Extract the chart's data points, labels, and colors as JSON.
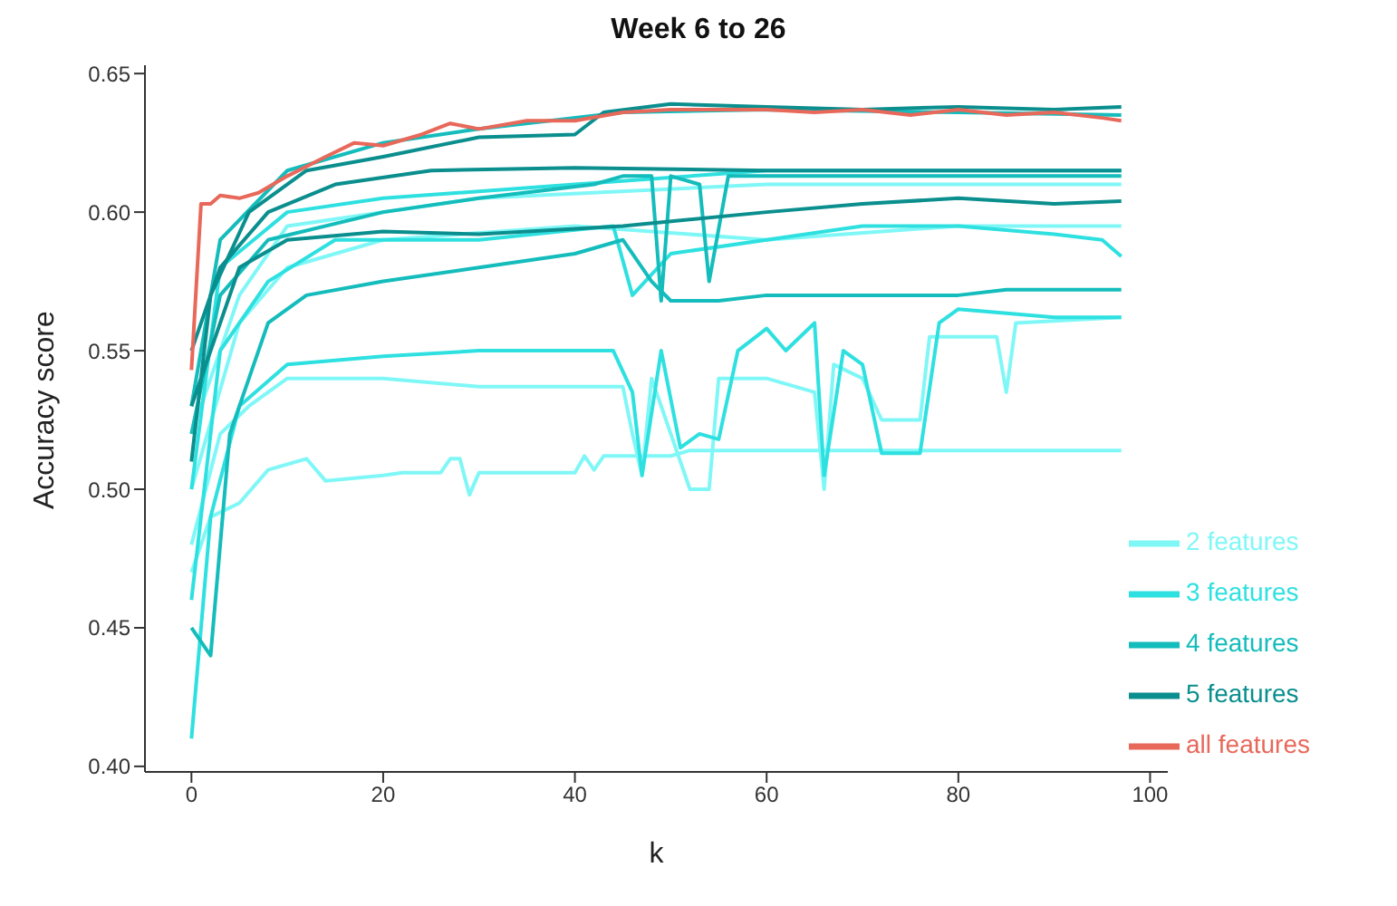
{
  "chart_data": {
    "type": "line",
    "title": "Week 6 to 26",
    "xlabel": "k",
    "ylabel": "Accuracy score",
    "xlim": [
      -4.85,
      101.85
    ],
    "ylim": [
      0.398,
      0.653
    ],
    "xticks": [
      0,
      20,
      40,
      60,
      80,
      100
    ],
    "yticks": [
      {
        "value": 0.4,
        "label": "0.40"
      },
      0.45,
      {
        "value": 0.5,
        "label": "0.50"
      },
      0.55,
      {
        "value": 0.6,
        "label": "0.60"
      },
      0.65
    ],
    "grid": false,
    "legend": "bottom right",
    "marker": "none",
    "line_style": "solid",
    "series": [
      {
        "name": "2 features",
        "color": "#80f7f7",
        "x": [
          0,
          2,
          5,
          8,
          12,
          14,
          20,
          22,
          26,
          27,
          28,
          29,
          30,
          40,
          41,
          42,
          43,
          50,
          52,
          97
        ],
        "values": [
          0.47,
          0.49,
          0.495,
          0.507,
          0.511,
          0.503,
          0.505,
          0.506,
          0.506,
          0.511,
          0.511,
          0.498,
          0.506,
          0.506,
          0.512,
          0.507,
          0.512,
          0.512,
          0.514,
          0.514
        ]
      },
      {
        "color": "#80f7f7",
        "x": [
          0,
          3,
          6,
          10,
          20,
          30,
          40,
          45,
          46,
          47,
          48,
          50,
          52,
          54,
          55,
          60,
          65,
          66,
          67,
          70,
          72,
          76,
          77,
          84,
          85,
          86,
          97
        ],
        "values": [
          0.48,
          0.52,
          0.53,
          0.54,
          0.54,
          0.537,
          0.537,
          0.537,
          0.52,
          0.505,
          0.54,
          0.52,
          0.5,
          0.5,
          0.54,
          0.54,
          0.535,
          0.5,
          0.545,
          0.54,
          0.525,
          0.525,
          0.555,
          0.555,
          0.535,
          0.56,
          0.562
        ]
      },
      {
        "color": "#80f7f7",
        "x": [
          0,
          5,
          10,
          20,
          40,
          60,
          80,
          97
        ],
        "values": [
          0.5,
          0.56,
          0.58,
          0.59,
          0.595,
          0.59,
          0.595,
          0.595
        ]
      },
      {
        "color": "#80f7f7",
        "x": [
          0,
          5,
          10,
          30,
          60,
          97
        ],
        "values": [
          0.52,
          0.57,
          0.595,
          0.605,
          0.61,
          0.61
        ]
      },
      {
        "name": "3 features",
        "color": "#2ee0e0",
        "x": [
          0,
          2,
          5,
          10,
          20,
          30,
          40,
          44,
          46,
          47,
          49,
          51,
          53,
          55,
          57,
          60,
          62,
          65,
          66,
          68,
          70,
          72,
          76,
          78,
          80,
          90,
          97
        ],
        "values": [
          0.41,
          0.49,
          0.53,
          0.545,
          0.548,
          0.55,
          0.55,
          0.55,
          0.535,
          0.505,
          0.55,
          0.515,
          0.52,
          0.518,
          0.55,
          0.558,
          0.55,
          0.56,
          0.505,
          0.55,
          0.545,
          0.513,
          0.513,
          0.56,
          0.565,
          0.562,
          0.562
        ]
      },
      {
        "color": "#2ee0e0",
        "x": [
          0,
          3,
          8,
          15,
          30,
          44,
          46,
          50,
          60,
          70,
          80,
          90,
          95,
          97
        ],
        "values": [
          0.46,
          0.55,
          0.575,
          0.59,
          0.59,
          0.595,
          0.57,
          0.585,
          0.59,
          0.595,
          0.595,
          0.592,
          0.59,
          0.584
        ]
      },
      {
        "color": "#2ee0e0",
        "x": [
          0,
          3,
          10,
          20,
          40,
          60,
          97
        ],
        "values": [
          0.5,
          0.58,
          0.6,
          0.605,
          0.61,
          0.615,
          0.615
        ]
      },
      {
        "name": "4 features",
        "color": "#14bcbc",
        "x": [
          0,
          2,
          4,
          8,
          12,
          20,
          30,
          40,
          45,
          48,
          50,
          55,
          60,
          70,
          80,
          85,
          97
        ],
        "values": [
          0.45,
          0.44,
          0.52,
          0.56,
          0.57,
          0.575,
          0.58,
          0.585,
          0.59,
          0.575,
          0.568,
          0.568,
          0.57,
          0.57,
          0.57,
          0.572,
          0.572
        ]
      },
      {
        "color": "#14bcbc",
        "x": [
          0,
          3,
          8,
          20,
          30,
          42,
          45,
          48,
          49,
          50,
          53,
          54,
          56,
          60,
          97
        ],
        "values": [
          0.52,
          0.57,
          0.59,
          0.6,
          0.605,
          0.61,
          0.613,
          0.613,
          0.568,
          0.613,
          0.61,
          0.575,
          0.613,
          0.613,
          0.613
        ]
      },
      {
        "color": "#14bcbc",
        "x": [
          0,
          3,
          10,
          20,
          30,
          45,
          60,
          80,
          97
        ],
        "values": [
          0.53,
          0.59,
          0.615,
          0.625,
          0.63,
          0.636,
          0.637,
          0.636,
          0.635
        ]
      },
      {
        "name": "5 features",
        "color": "#0a8e8e",
        "x": [
          0,
          3,
          8,
          15,
          25,
          40,
          60,
          97
        ],
        "values": [
          0.55,
          0.58,
          0.6,
          0.61,
          0.615,
          0.616,
          0.615,
          0.615
        ]
      },
      {
        "color": "#0a8e8e",
        "x": [
          0,
          2,
          6,
          12,
          20,
          30,
          40,
          43,
          50,
          60,
          70,
          80,
          90,
          97
        ],
        "values": [
          0.51,
          0.57,
          0.6,
          0.615,
          0.62,
          0.627,
          0.628,
          0.636,
          0.639,
          0.638,
          0.637,
          0.638,
          0.637,
          0.638
        ]
      },
      {
        "color": "#0a8e8e",
        "x": [
          0,
          5,
          10,
          20,
          30,
          45,
          60,
          70,
          80,
          90,
          97
        ],
        "values": [
          0.53,
          0.58,
          0.59,
          0.593,
          0.592,
          0.595,
          0.6,
          0.603,
          0.605,
          0.603,
          0.604
        ]
      },
      {
        "name": "all features",
        "color": "#e8685a",
        "x": [
          0,
          1,
          2,
          3,
          5,
          7,
          10,
          14,
          17,
          20,
          24,
          27,
          30,
          35,
          40,
          45,
          50,
          55,
          60,
          65,
          70,
          75,
          80,
          85,
          90,
          95,
          97
        ],
        "values": [
          0.543,
          0.603,
          0.603,
          0.606,
          0.605,
          0.607,
          0.613,
          0.62,
          0.625,
          0.624,
          0.628,
          0.632,
          0.63,
          0.633,
          0.633,
          0.636,
          0.637,
          0.637,
          0.637,
          0.636,
          0.637,
          0.635,
          0.637,
          0.635,
          0.636,
          0.634,
          0.633
        ]
      }
    ]
  }
}
